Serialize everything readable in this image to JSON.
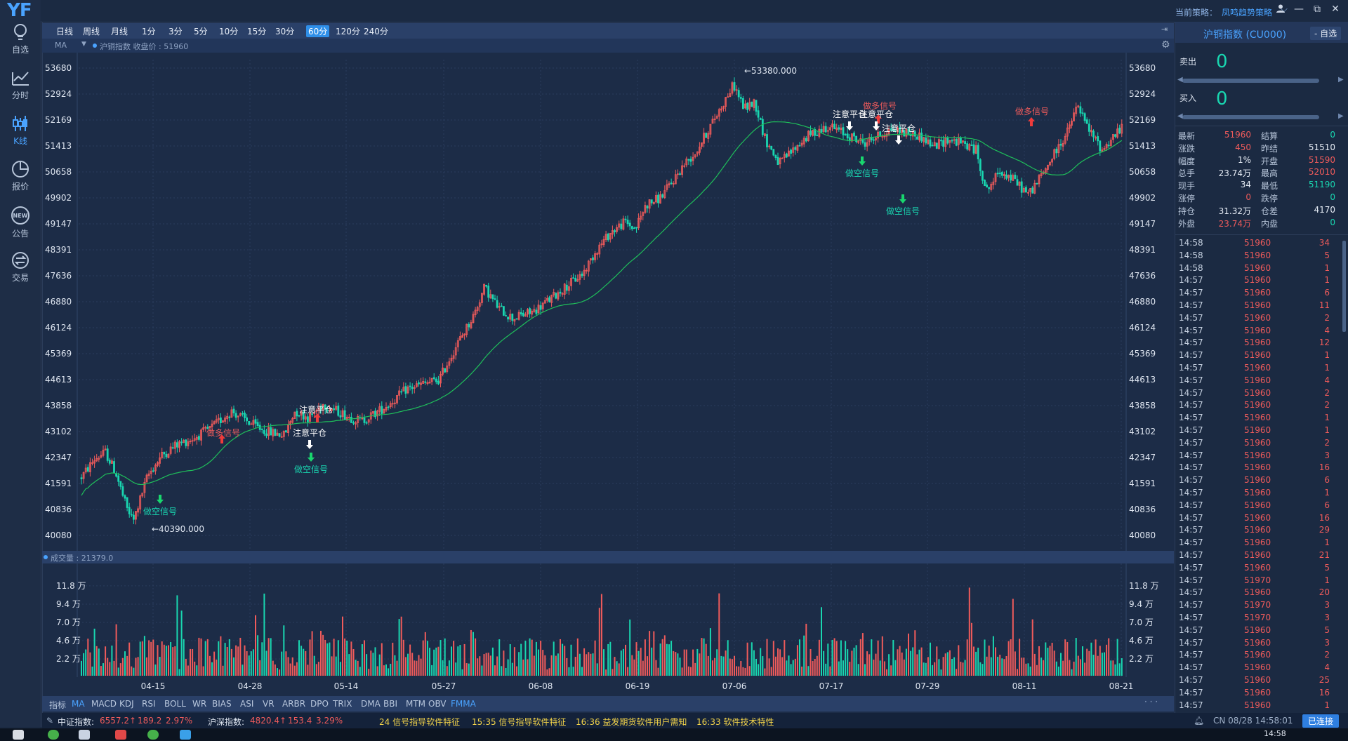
{
  "app": {
    "logo": "YF"
  },
  "rail": [
    {
      "label": "自选",
      "icon": "lightbulb-icon"
    },
    {
      "label": "分时",
      "icon": "line-chart-icon"
    },
    {
      "label": "K线",
      "icon": "candlestick-icon",
      "active": true
    },
    {
      "label": "报价",
      "icon": "pie-chart-icon"
    },
    {
      "label": "公告",
      "icon": "new-badge-icon"
    },
    {
      "label": "交易",
      "icon": "exchange-icon"
    }
  ],
  "topbar": {
    "strategy_label": "当前策略：",
    "strategy_value": "凤鸣趋势策略"
  },
  "periods": [
    "日线",
    "周线",
    "月线",
    "1分",
    "3分",
    "5分",
    "10分",
    "15分",
    "30分",
    "60分",
    "120分",
    "240分"
  ],
  "active_period": "60分",
  "info": {
    "ma_select": "MA",
    "text": "沪铜指数  收盘价 : 51960"
  },
  "volume_info": "成交量 : 21379.0",
  "price_axis": [
    "53680",
    "52924",
    "52169",
    "51413",
    "50658",
    "49902",
    "49147",
    "48391",
    "47636",
    "46880",
    "46124",
    "45369",
    "44613",
    "43858",
    "43102",
    "42347",
    "41591",
    "40836",
    "40080"
  ],
  "volume_axis": [
    "11.8 万",
    "9.4 万",
    "7.0 万",
    "4.6 万",
    "2.2 万"
  ],
  "date_axis": [
    "04-15",
    "04-28",
    "05-14",
    "05-27",
    "06-08",
    "06-19",
    "07-06",
    "07-17",
    "07-29",
    "08-11",
    "08-21"
  ],
  "annotations": {
    "high": "←53380.000",
    "low": "←40390.000",
    "sell_signal": "做空信号",
    "buy_signal": "做多信号",
    "close_note": "注意平仓"
  },
  "indicators": [
    "指标",
    "MA",
    "MACD",
    "KDJ",
    "RSI",
    "BOLL",
    "WR",
    "BIAS",
    "ASI",
    "VR",
    "ARBR",
    "DPO",
    "TRIX",
    "DMA",
    "BBI",
    "MTM",
    "OBV",
    "FMMA"
  ],
  "active_indicators": [
    "MA",
    "FMMA"
  ],
  "right_panel": {
    "title": "沪铜指数 (CU000)",
    "button": "- 自选",
    "sell_label": "卖出",
    "sell_value": "0",
    "buy_label": "买入",
    "buy_value": "0",
    "quote_left": [
      {
        "k": "最新",
        "v": "51960",
        "c": "red"
      },
      {
        "k": "涨跌",
        "v": "450",
        "c": "red"
      },
      {
        "k": "幅度",
        "v": "1%",
        "c": "w"
      },
      {
        "k": "总手",
        "v": "23.74万",
        "c": "w"
      },
      {
        "k": "现手",
        "v": "34",
        "c": "w"
      },
      {
        "k": "涨停",
        "v": "0",
        "c": "red"
      },
      {
        "k": "持仓",
        "v": "31.32万",
        "c": "w"
      },
      {
        "k": "外盘",
        "v": "23.74万",
        "c": "red"
      }
    ],
    "quote_right": [
      {
        "k": "结算",
        "v": "0",
        "c": "c"
      },
      {
        "k": "昨结",
        "v": "51510",
        "c": "w"
      },
      {
        "k": "开盘",
        "v": "51590",
        "c": "red"
      },
      {
        "k": "最高",
        "v": "52010",
        "c": "red"
      },
      {
        "k": "最低",
        "v": "51190",
        "c": "c"
      },
      {
        "k": "跌停",
        "v": "0",
        "c": "c"
      },
      {
        "k": "仓差",
        "v": "4170",
        "c": "w"
      },
      {
        "k": "内盘",
        "v": "0",
        "c": "c"
      }
    ],
    "ticks": [
      [
        "14:58",
        "51960",
        "34"
      ],
      [
        "14:58",
        "51960",
        "5"
      ],
      [
        "14:58",
        "51960",
        "1"
      ],
      [
        "14:57",
        "51960",
        "1"
      ],
      [
        "14:57",
        "51960",
        "6"
      ],
      [
        "14:57",
        "51960",
        "11"
      ],
      [
        "14:57",
        "51960",
        "2"
      ],
      [
        "14:57",
        "51960",
        "4"
      ],
      [
        "14:57",
        "51960",
        "12"
      ],
      [
        "14:57",
        "51960",
        "1"
      ],
      [
        "14:57",
        "51960",
        "1"
      ],
      [
        "14:57",
        "51960",
        "4"
      ],
      [
        "14:57",
        "51960",
        "2"
      ],
      [
        "14:57",
        "51960",
        "2"
      ],
      [
        "14:57",
        "51960",
        "1"
      ],
      [
        "14:57",
        "51960",
        "1"
      ],
      [
        "14:57",
        "51960",
        "2"
      ],
      [
        "14:57",
        "51960",
        "3"
      ],
      [
        "14:57",
        "51960",
        "16"
      ],
      [
        "14:57",
        "51960",
        "6"
      ],
      [
        "14:57",
        "51960",
        "1"
      ],
      [
        "14:57",
        "51960",
        "6"
      ],
      [
        "14:57",
        "51960",
        "16"
      ],
      [
        "14:57",
        "51960",
        "29"
      ],
      [
        "14:57",
        "51960",
        "1"
      ],
      [
        "14:57",
        "51960",
        "21"
      ],
      [
        "14:57",
        "51960",
        "5"
      ],
      [
        "14:57",
        "51970",
        "1"
      ],
      [
        "14:57",
        "51960",
        "20"
      ],
      [
        "14:57",
        "51970",
        "3"
      ],
      [
        "14:57",
        "51970",
        "3"
      ],
      [
        "14:57",
        "51960",
        "5"
      ],
      [
        "14:57",
        "51960",
        "3"
      ],
      [
        "14:57",
        "51960",
        "2"
      ],
      [
        "14:57",
        "51960",
        "4"
      ],
      [
        "14:57",
        "51960",
        "25"
      ],
      [
        "14:57",
        "51960",
        "16"
      ],
      [
        "14:57",
        "51960",
        "1"
      ]
    ]
  },
  "ticker": {
    "index1_label": "中证指数:",
    "index1_value": "6557.2↑",
    "index1_change": "189.2",
    "index1_pct": "2.97%",
    "index2_label": "沪深指数:",
    "index2_value": "4820.4↑",
    "index2_change": "153.4",
    "index2_pct": "3.29%",
    "news": [
      "24  信号指导软件特征",
      "15:35  信号指导软件特征",
      "16:36  益发期货软件用户需知",
      "16:33  软件技术特性"
    ],
    "status_time": "CN 08/28 14:58:01",
    "status_badge": "已连接"
  },
  "taskbar": {
    "clock": "14:58"
  },
  "colors": {
    "up": "#ef5b5b",
    "down": "#19d6b0",
    "ma": "#1fbf5a",
    "accent": "#4aa3ff"
  }
}
